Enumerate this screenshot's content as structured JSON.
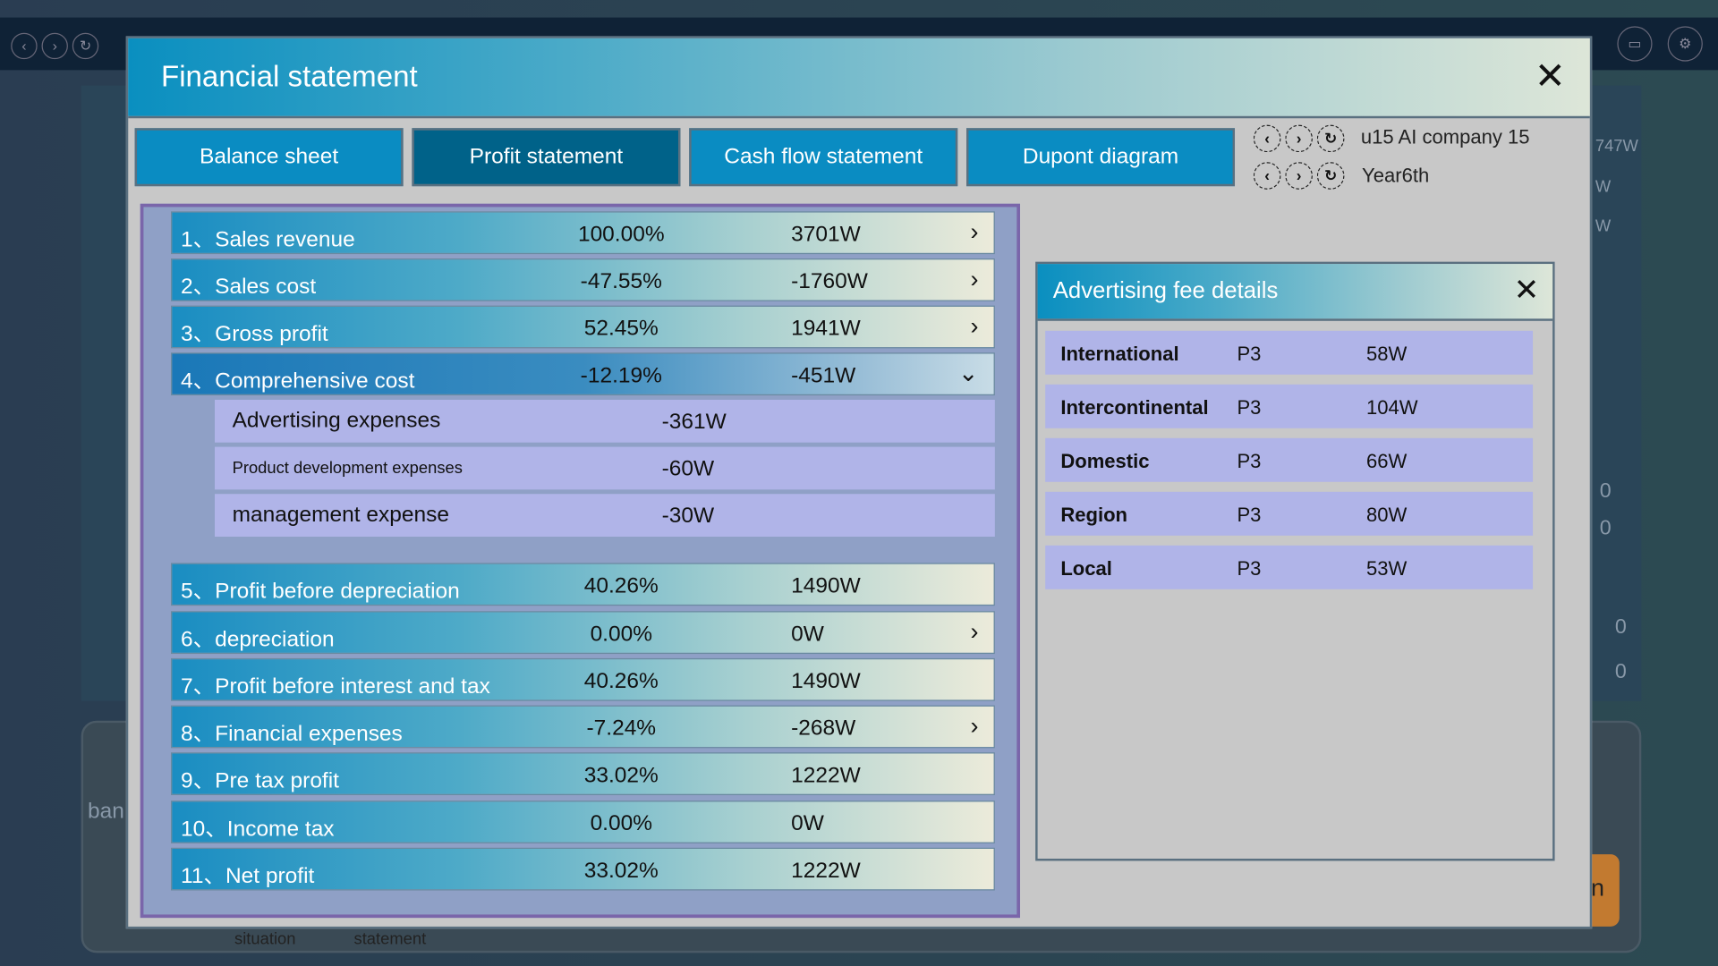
{
  "background": {
    "texts": [
      "747W",
      "W",
      "W",
      "0",
      "0",
      "0",
      "0",
      "ban",
      "situation",
      "statement",
      "n"
    ]
  },
  "modal": {
    "title": "Financial statement",
    "tabs": [
      {
        "label": "Balance sheet"
      },
      {
        "label": "Profit statement",
        "active": true
      },
      {
        "label": "Cash flow statement"
      },
      {
        "label": "Dupont diagram"
      }
    ],
    "company": "u15  AI company 15",
    "year": "Year6th"
  },
  "rows": [
    {
      "label": "1、Sales revenue",
      "pct": "100.00%",
      "val": "3701W",
      "chev": "›"
    },
    {
      "label": "2、Sales cost",
      "pct": "-47.55%",
      "val": "-1760W",
      "chev": "›"
    },
    {
      "label": "3、Gross profit",
      "pct": "52.45%",
      "val": "1941W",
      "chev": "›"
    },
    {
      "label": "4、Comprehensive cost",
      "pct": "-12.19%",
      "val": "-451W",
      "chev": "⌄"
    },
    {
      "label": "5、Profit before depreciation",
      "pct": "40.26%",
      "val": "1490W",
      "chev": ""
    },
    {
      "label": "6、depreciation",
      "pct": "0.00%",
      "val": "0W",
      "chev": "›"
    },
    {
      "label": "7、Profit before interest and tax",
      "pct": "40.26%",
      "val": "1490W",
      "chev": ""
    },
    {
      "label": "8、Financial expenses",
      "pct": "-7.24%",
      "val": "-268W",
      "chev": "›"
    },
    {
      "label": "9、Pre tax profit",
      "pct": "33.02%",
      "val": "1222W",
      "chev": ""
    },
    {
      "label": "10、Income tax",
      "pct": "0.00%",
      "val": "0W",
      "chev": ""
    },
    {
      "label": "11、Net profit",
      "pct": "33.02%",
      "val": "1222W",
      "chev": ""
    }
  ],
  "subrows": [
    {
      "label": "Advertising expenses",
      "val": "-361W"
    },
    {
      "label": "Product development expenses",
      "val": "-60W"
    },
    {
      "label": "management expense",
      "val": "-30W"
    }
  ],
  "popup": {
    "title": "Advertising fee details",
    "rows": [
      {
        "market": "International",
        "product": "P3",
        "fee": "58W"
      },
      {
        "market": "Intercontinental",
        "product": "P3",
        "fee": "104W"
      },
      {
        "market": "Domestic",
        "product": "P3",
        "fee": "66W"
      },
      {
        "market": "Region",
        "product": "P3",
        "fee": "80W"
      },
      {
        "market": "Local",
        "product": "P3",
        "fee": "53W"
      }
    ]
  }
}
